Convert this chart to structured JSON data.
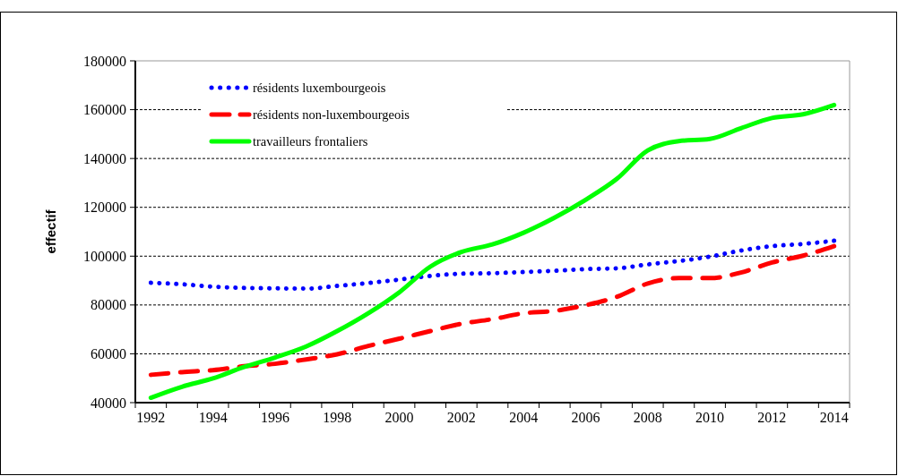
{
  "chart_data": {
    "type": "line",
    "ylabel": "effectif",
    "categories": [
      "1992",
      null,
      "1994",
      null,
      "1996",
      null,
      "1998",
      null,
      "2000",
      null,
      "2002",
      null,
      "2004",
      null,
      "2006",
      null,
      "2008",
      null,
      "2010",
      null,
      "2012",
      null,
      "2014"
    ],
    "ylim": [
      40000,
      180000
    ],
    "yticks": [
      40000,
      60000,
      80000,
      100000,
      120000,
      140000,
      160000,
      180000
    ],
    "grid": "y",
    "legend": "top left",
    "series": [
      {
        "name": "résidents luxembourgeois",
        "color": "#0000ff",
        "line_style": "dotted",
        "values": [
          89100,
          88500,
          87500,
          87000,
          86800,
          86700,
          87800,
          89000,
          90400,
          91900,
          92800,
          93000,
          93500,
          94000,
          94700,
          95000,
          96600,
          98000,
          99800,
          102300,
          104100,
          105000,
          106300
        ]
      },
      {
        "name": "résidents non-luxembourgeois",
        "color": "#ff0000",
        "line_style": "dashed",
        "values": [
          51400,
          52500,
          53300,
          54900,
          55900,
          57700,
          59800,
          63200,
          66200,
          69300,
          72300,
          74200,
          76600,
          77600,
          79900,
          83300,
          88800,
          91000,
          91000,
          93300,
          97400,
          100200,
          104100
        ]
      },
      {
        "name": "travailleurs frontaliers",
        "color": "#00ff00",
        "line_style": "solid",
        "values": [
          42000,
          46500,
          49900,
          54600,
          58500,
          63000,
          69300,
          76600,
          85200,
          95700,
          101700,
          104800,
          109600,
          115800,
          123100,
          131600,
          143300,
          147100,
          148000,
          152400,
          156600,
          158100,
          161900
        ]
      }
    ]
  }
}
